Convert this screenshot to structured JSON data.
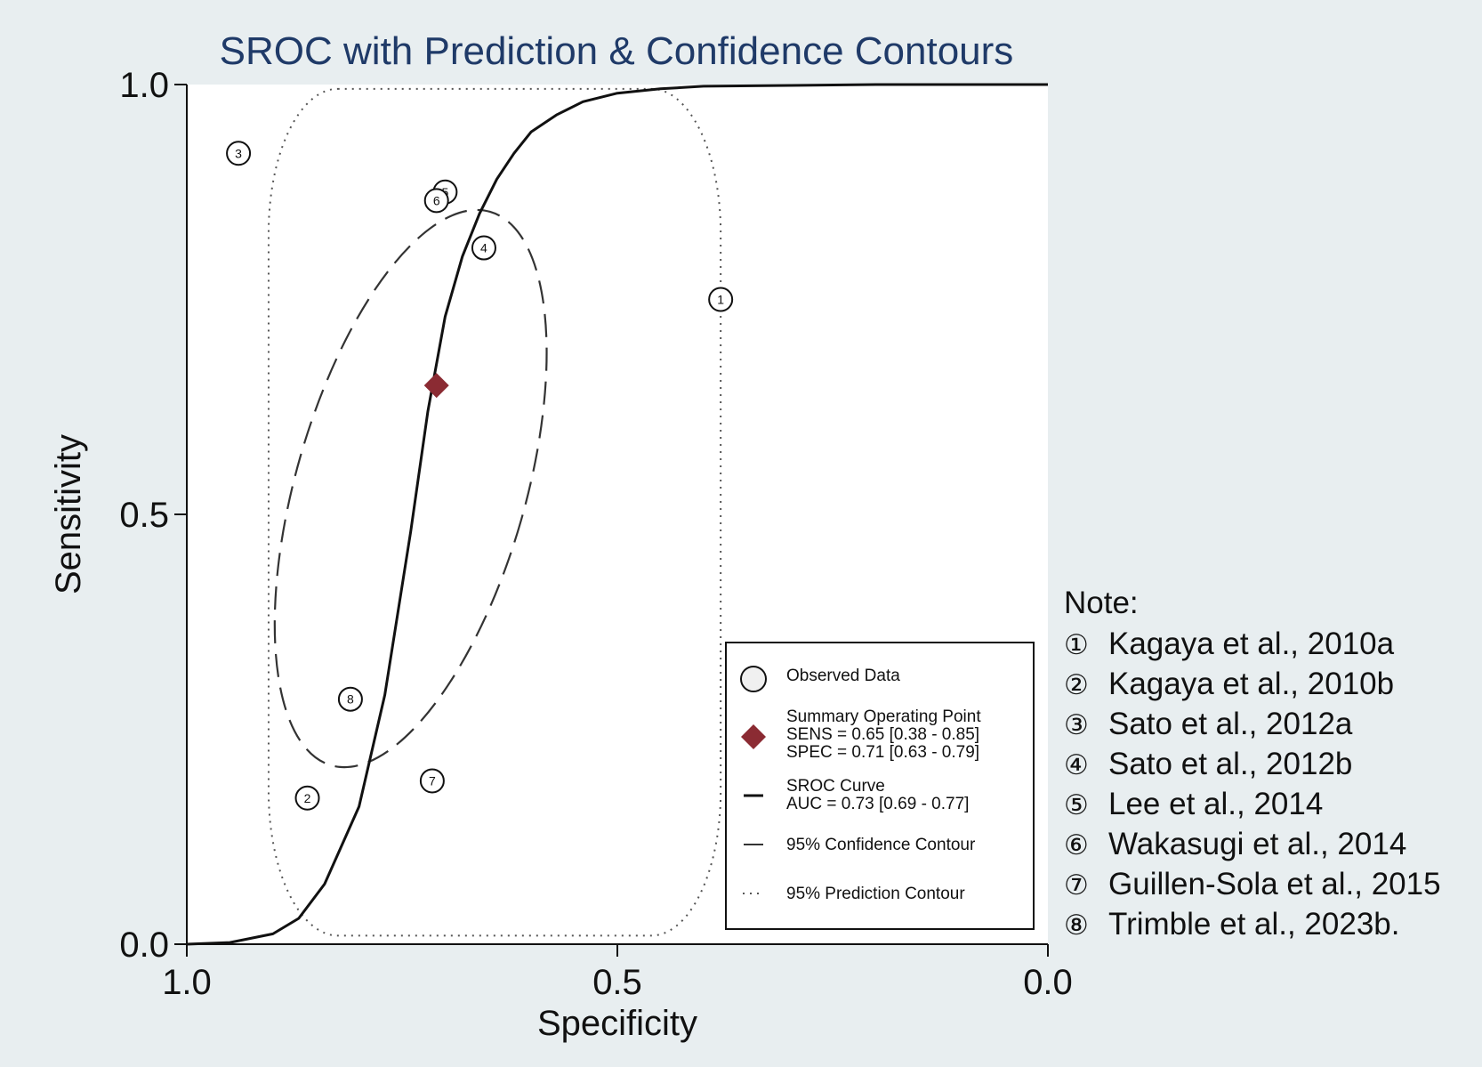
{
  "colors": {
    "background": "#e8eef0",
    "plot_bg": "#ffffff",
    "title": "#1f3a68",
    "summary_point": "#8b2b33",
    "line": "#111111"
  },
  "chart_data": {
    "type": "scatter",
    "title": "SROC with Prediction & Confidence Contours",
    "xlabel": "Specificity",
    "ylabel": "Sensitivity",
    "x_reversed": true,
    "xlim": [
      1.0,
      0.0
    ],
    "ylim": [
      0.0,
      1.0
    ],
    "xticks": [
      "1.0",
      "0.5",
      "0.0"
    ],
    "yticks": [
      "0.0",
      "0.5",
      "1.0"
    ],
    "grid": false,
    "observed": [
      {
        "label": "1",
        "specificity": 0.38,
        "sensitivity": 0.75
      },
      {
        "label": "2",
        "specificity": 0.86,
        "sensitivity": 0.17
      },
      {
        "label": "3",
        "specificity": 0.94,
        "sensitivity": 0.92
      },
      {
        "label": "4",
        "specificity": 0.655,
        "sensitivity": 0.81
      },
      {
        "label": "5",
        "specificity": 0.7,
        "sensitivity": 0.875
      },
      {
        "label": "6",
        "specificity": 0.71,
        "sensitivity": 0.865
      },
      {
        "label": "7",
        "specificity": 0.715,
        "sensitivity": 0.19
      },
      {
        "label": "8",
        "specificity": 0.81,
        "sensitivity": 0.285
      }
    ],
    "summary_point": {
      "specificity": 0.71,
      "sensitivity": 0.65
    },
    "sroc_curve": {
      "specificity": [
        1.0,
        0.95,
        0.9,
        0.87,
        0.84,
        0.8,
        0.77,
        0.74,
        0.72,
        0.7,
        0.68,
        0.66,
        0.64,
        0.62,
        0.6,
        0.57,
        0.54,
        0.5,
        0.45,
        0.4,
        0.3,
        0.2,
        0.0
      ],
      "sensitivity": [
        0.0,
        0.002,
        0.012,
        0.03,
        0.07,
        0.16,
        0.29,
        0.48,
        0.62,
        0.73,
        0.8,
        0.85,
        0.89,
        0.92,
        0.945,
        0.965,
        0.98,
        0.99,
        0.995,
        0.998,
        0.999,
        1.0,
        1.0
      ]
    },
    "confidence_contour": {
      "center_specificity": 0.74,
      "center_sensitivity": 0.53,
      "semi_axis_a": 0.145,
      "semi_axis_b": 0.335,
      "tilt_deg": 16
    },
    "prediction_contour": {
      "specificity_min": 0.38,
      "specificity_max": 0.905,
      "sensitivity_min": 0.01,
      "sensitivity_max": 0.995,
      "corner": 0.17
    },
    "legend": {
      "placement": "bottom-right inside plot",
      "items": [
        {
          "lines": [
            "Observed Data"
          ]
        },
        {
          "lines": [
            "Summary Operating Point",
            "SENS = 0.65 [0.38 - 0.85]",
            "SPEC = 0.71 [0.63 - 0.79]"
          ]
        },
        {
          "lines": [
            "SROC Curve",
            "AUC = 0.73 [0.69 - 0.77]"
          ]
        },
        {
          "lines": [
            "95% Confidence Contour"
          ]
        },
        {
          "lines": [
            "95% Prediction Contour"
          ]
        }
      ]
    }
  },
  "note": {
    "title": "Note:",
    "items": [
      {
        "num": "①",
        "text": "Kagaya et al., 2010a"
      },
      {
        "num": "②",
        "text": "Kagaya et al., 2010b"
      },
      {
        "num": "③",
        "text": "Sato et al., 2012a"
      },
      {
        "num": "④",
        "text": "Sato et al., 2012b"
      },
      {
        "num": "⑤",
        "text": "Lee et al., 2014"
      },
      {
        "num": "⑥",
        "text": "Wakasugi et al., 2014"
      },
      {
        "num": "⑦",
        "text": "Guillen-Sola et al., 2015"
      },
      {
        "num": "⑧",
        "text": "Trimble et al., 2023b."
      }
    ]
  }
}
